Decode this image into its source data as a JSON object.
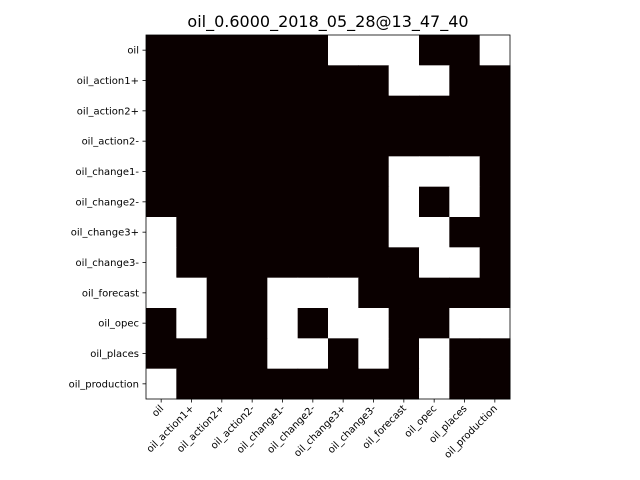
{
  "chart_data": {
    "type": "heatmap",
    "title": "oil_0.6000_2018_05_28@13_47_40",
    "xlabel": "",
    "ylabel": "",
    "x_categories": [
      "oil",
      "oil_action1+",
      "oil_action2+",
      "oil_action2-",
      "oil_change1-",
      "oil_change2-",
      "oil_change3+",
      "oil_change3-",
      "oil_forecast",
      "oil_opec",
      "oil_places",
      "oil_production"
    ],
    "y_categories": [
      "oil",
      "oil_action1+",
      "oil_action2+",
      "oil_action2-",
      "oil_change1-",
      "oil_change2-",
      "oil_change3+",
      "oil_change3-",
      "oil_forecast",
      "oil_opec",
      "oil_places",
      "oil_production"
    ],
    "matrix": [
      [
        0,
        0,
        0,
        0,
        0,
        0,
        1,
        1,
        1,
        0,
        0,
        1
      ],
      [
        0,
        0,
        0,
        0,
        0,
        0,
        0,
        0,
        1,
        1,
        0,
        0
      ],
      [
        0,
        0,
        0,
        0,
        0,
        0,
        0,
        0,
        0,
        0,
        0,
        0
      ],
      [
        0,
        0,
        0,
        0,
        0,
        0,
        0,
        0,
        0,
        0,
        0,
        0
      ],
      [
        0,
        0,
        0,
        0,
        0,
        0,
        0,
        0,
        1,
        1,
        1,
        0
      ],
      [
        0,
        0,
        0,
        0,
        0,
        0,
        0,
        0,
        1,
        0,
        1,
        0
      ],
      [
        1,
        0,
        0,
        0,
        0,
        0,
        0,
        0,
        1,
        1,
        0,
        0
      ],
      [
        1,
        0,
        0,
        0,
        0,
        0,
        0,
        0,
        0,
        1,
        1,
        0
      ],
      [
        1,
        1,
        0,
        0,
        1,
        1,
        1,
        0,
        0,
        0,
        0,
        0
      ],
      [
        0,
        1,
        0,
        0,
        1,
        0,
        1,
        1,
        0,
        0,
        1,
        1
      ],
      [
        0,
        0,
        0,
        0,
        1,
        1,
        0,
        1,
        0,
        1,
        0,
        0
      ],
      [
        1,
        0,
        0,
        0,
        0,
        0,
        0,
        0,
        0,
        1,
        0,
        0
      ]
    ],
    "colors": {
      "0": "#0a0000",
      "1": "#ffffff"
    },
    "grid": false,
    "legend": "none"
  }
}
